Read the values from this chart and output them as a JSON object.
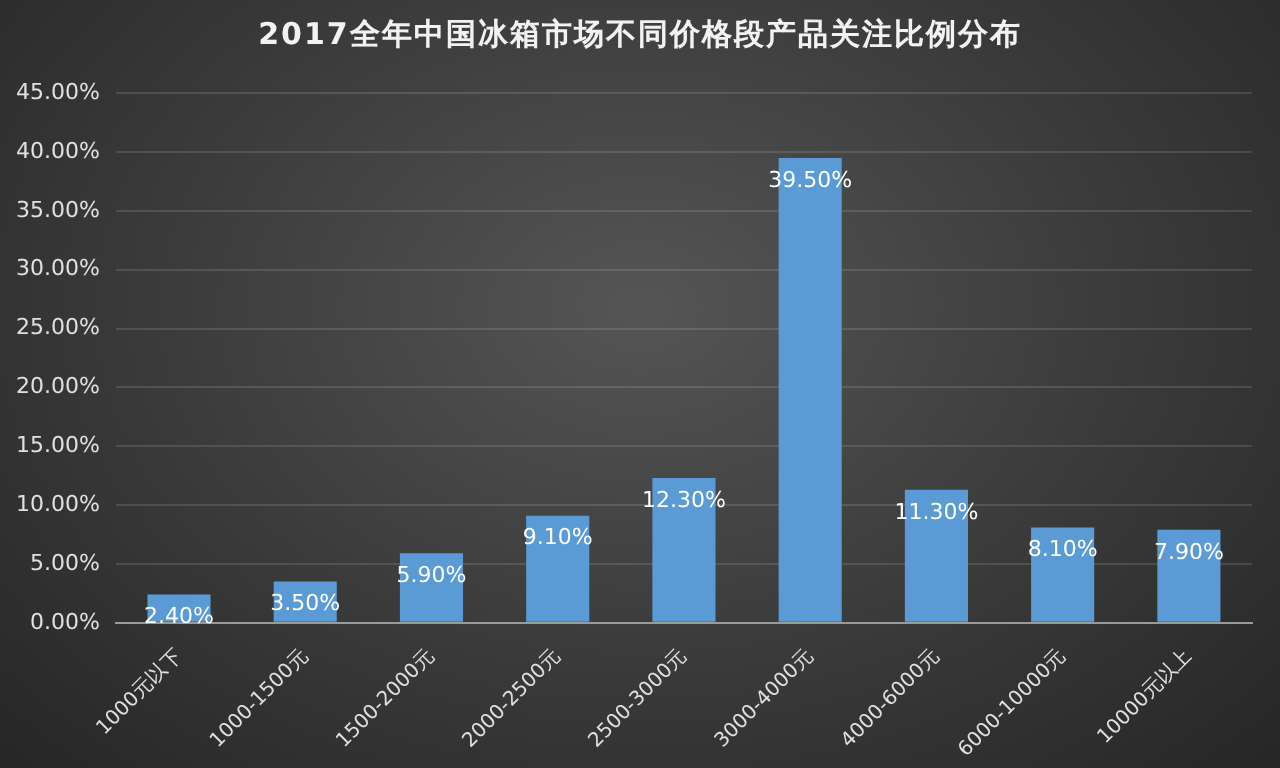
{
  "chart_data": {
    "type": "bar",
    "title": "2017全年中国冰箱市场不同价格段产品关注比例分布",
    "categories": [
      "1000元以下",
      "1000-1500元",
      "1500-2000元",
      "2000-2500元",
      "2500-3000元",
      "3000-4000元",
      "4000-6000元",
      "6000-10000元",
      "10000元以上"
    ],
    "values": [
      2.4,
      3.5,
      5.9,
      9.1,
      12.3,
      39.5,
      11.3,
      8.1,
      7.9
    ],
    "value_labels": [
      "2.40%",
      "3.50%",
      "5.90%",
      "9.10%",
      "12.30%",
      "39.50%",
      "11.30%",
      "8.10%",
      "7.90%"
    ],
    "color": "#5b9bd5",
    "ylim": [
      0,
      45
    ],
    "yticks": [
      {
        "value": 0,
        "label": "0.00%"
      },
      {
        "value": 5,
        "label": "5.00%"
      },
      {
        "value": 10,
        "label": "10.00%"
      },
      {
        "value": 15,
        "label": "15.00%"
      },
      {
        "value": 20,
        "label": "20.00%"
      },
      {
        "value": 25,
        "label": "25.00%"
      },
      {
        "value": 30,
        "label": "30.00%"
      },
      {
        "value": 35,
        "label": "35.00%"
      },
      {
        "value": 40,
        "label": "40.00%"
      },
      {
        "value": 45,
        "label": "45.00%"
      }
    ],
    "grid": "y"
  }
}
